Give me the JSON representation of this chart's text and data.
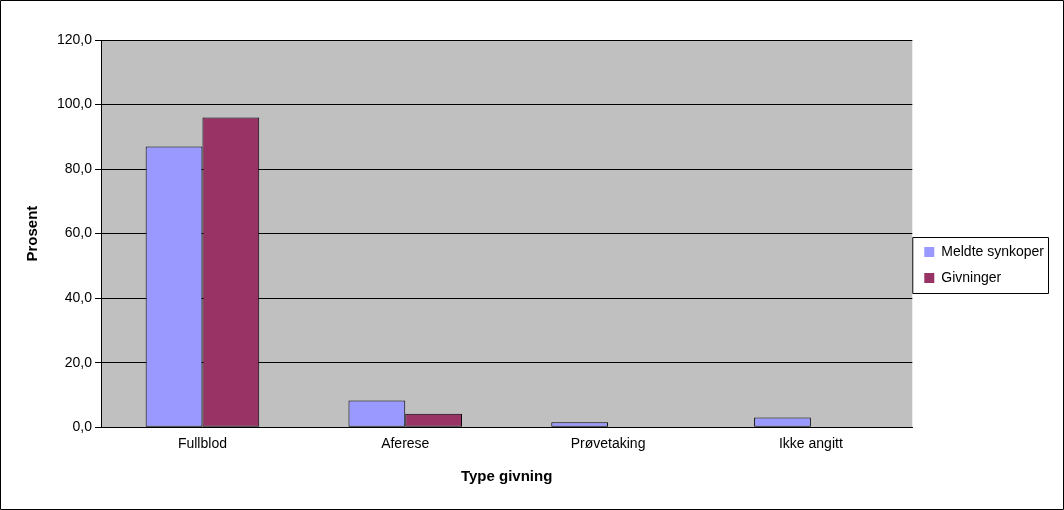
{
  "chart_data": {
    "type": "bar",
    "xlabel": "Type givning",
    "ylabel": "Prosent",
    "categories": [
      "Fullblod",
      "Aferese",
      "Prøvetaking",
      "Ikke angitt"
    ],
    "series": [
      {
        "name": "Meldte synkoper",
        "color": "#9999ff",
        "values": [
          87.0,
          8.3,
          1.5,
          3.0
        ]
      },
      {
        "name": "Givninger",
        "color": "#993366",
        "values": [
          96.0,
          4.2,
          0,
          0
        ]
      }
    ],
    "ylim": [
      0,
      120
    ],
    "yticks": [
      {
        "value": 0,
        "label": "0,0"
      },
      {
        "value": 20,
        "label": "20,0"
      },
      {
        "value": 40,
        "label": "40,0"
      },
      {
        "value": 60,
        "label": "60,0"
      },
      {
        "value": 80,
        "label": "80,0"
      },
      {
        "value": 100,
        "label": "100,0"
      },
      {
        "value": 120,
        "label": "120,0"
      }
    ],
    "grid": "y",
    "legend": "right"
  }
}
